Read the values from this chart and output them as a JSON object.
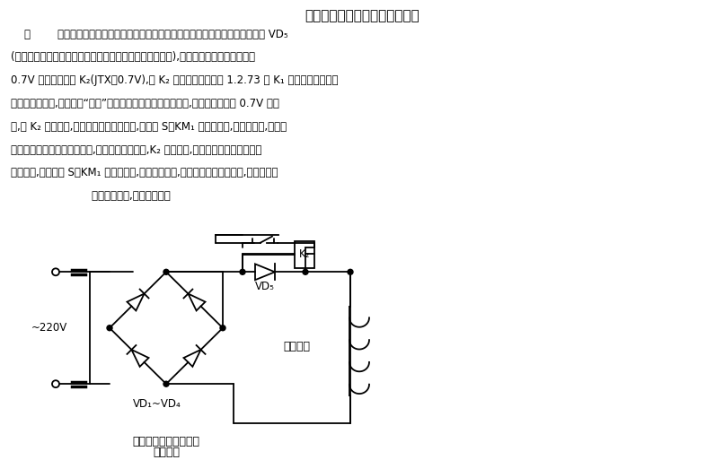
{
  "title": "新的直流调速系统失磁保护电路",
  "body_line1": "    图        所示失磁保护电路，在直流电动机励磁绕组回路中，串入一个硅整流二极管 VD₅",
  "body_line2": "(此二极管的整流值只要大于直流电动机的励磁电流值即可),在其两端并入一个额定值为",
  "body_line3": "0.7V 的电压继电器 K₂(JTX－0.7V),用 K₂ 的常开触点取代图 1.2.73 中 K₁ 的常开触点来控制",
  "body_line4": "主电路的接触器,达到防止“飞车”的目的。当励磁绕组有电流时,二极管两端就有 0.7V 的电",
  "body_line5": "压,使 K₂ 得电吸合,其常开触点闭合。这时,如合上 S、KM₁ 就得电吸合,主电路得电,系统开",
  "body_line6": "始工作。当励磁绕组无电流时,二极管两端无电压,K₂ 就不得电,其常开触点仍处于断开状",
  "body_line7": "态。这时,即使合上 S、KM₁ 也不能得电,主电路不得电,系统不工作。也就是说,若系统不先",
  "body_line8": "                        提供励磁电流,就无法工作。",
  "caption_line1": "新的直流调速系统失磁",
  "caption_line2": "保护电路",
  "bg_color": "#ffffff",
  "line_color": "#000000",
  "text_color": "#000000"
}
